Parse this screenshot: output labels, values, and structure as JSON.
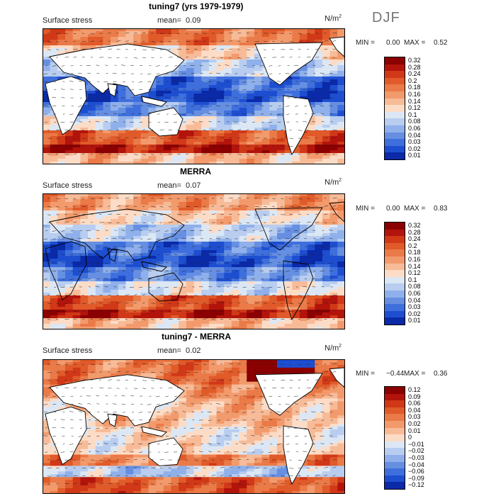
{
  "season": "DJF",
  "panels": [
    {
      "title": "tuning7 (yrs 1979-1979)",
      "variable": "Surface stress",
      "mean_label": "mean=",
      "mean_value": "0.09",
      "units": "N/m",
      "units_exp": "2",
      "min_label": "MIN =",
      "min_value": "0.00",
      "max_label": "MAX =",
      "max_value": "0.52",
      "colorbar": [
        "0.32",
        "0.28",
        "0.24",
        "0.2",
        "0.18",
        "0.16",
        "0.14",
        "0.12",
        "0.1",
        "0.08",
        "0.06",
        "0.04",
        "0.03",
        "0.02",
        "0.01"
      ],
      "colors": [
        "#8b0000",
        "#b2140c",
        "#d03818",
        "#e05a2a",
        "#ea7a48",
        "#f29a6c",
        "#f7bb98",
        "#fcdcc6",
        "#dce7f5",
        "#b8cdef",
        "#8fb0ea",
        "#668fe2",
        "#3f6fdc",
        "#1e4ed0",
        "#0a2aa8"
      ]
    },
    {
      "title": "MERRA",
      "variable": "Surface stress",
      "mean_label": "mean=",
      "mean_value": "0.07",
      "units": "N/m",
      "units_exp": "2",
      "min_label": "MIN =",
      "min_value": "0.00",
      "max_label": "MAX =",
      "max_value": "0.83",
      "colorbar": [
        "0.32",
        "0.28",
        "0.24",
        "0.2",
        "0.18",
        "0.16",
        "0.14",
        "0.12",
        "0.1",
        "0.08",
        "0.06",
        "0.04",
        "0.03",
        "0.02",
        "0.01"
      ],
      "colors": [
        "#8b0000",
        "#b2140c",
        "#d03818",
        "#e05a2a",
        "#ea7a48",
        "#f29a6c",
        "#f7bb98",
        "#fcdcc6",
        "#dce7f5",
        "#b8cdef",
        "#8fb0ea",
        "#668fe2",
        "#3f6fdc",
        "#1e4ed0",
        "#0a2aa8"
      ]
    },
    {
      "title": "tuning7 - MERRA",
      "variable": "Surface stress",
      "mean_label": "mean=",
      "mean_value": "0.02",
      "units": "N/m",
      "units_exp": "2",
      "min_label": "MIN =",
      "min_value": "−0.44",
      "max_label": "MAX =",
      "max_value": "0.36",
      "colorbar": [
        "0.12",
        "0.09",
        "0.06",
        "0.04",
        "0.03",
        "0.02",
        "0.01",
        "0",
        "−0.01",
        "−0.02",
        "−0.03",
        "−0.04",
        "−0.06",
        "−0.09",
        "−0.12"
      ],
      "colors": [
        "#8b0000",
        "#b2140c",
        "#d03818",
        "#e05a2a",
        "#ea7a48",
        "#f29a6c",
        "#f7bb98",
        "#fcdcc6",
        "#dce7f5",
        "#b8cdef",
        "#8fb0ea",
        "#668fe2",
        "#3f6fdc",
        "#1e4ed0",
        "#0a2aa8"
      ]
    }
  ],
  "chart_data": [
    {
      "type": "heatmap",
      "title": "tuning7 (yrs 1979-1979)",
      "variable": "Surface stress",
      "units": "N/m2",
      "season": "DJF",
      "mean": 0.09,
      "min": 0.0,
      "max": 0.52,
      "color_levels": [
        0.01,
        0.02,
        0.03,
        0.04,
        0.06,
        0.08,
        0.1,
        0.12,
        0.14,
        0.16,
        0.18,
        0.2,
        0.24,
        0.28,
        0.32
      ],
      "overlay": "wind stress vectors",
      "field": {
        "land_fill": "#ffffff"
      }
    },
    {
      "type": "heatmap",
      "title": "MERRA",
      "variable": "Surface stress",
      "units": "N/m2",
      "mean": 0.07,
      "min": 0.0,
      "max": 0.83,
      "color_levels": [
        0.01,
        0.02,
        0.03,
        0.04,
        0.06,
        0.08,
        0.1,
        0.12,
        0.14,
        0.16,
        0.18,
        0.2,
        0.24,
        0.28,
        0.32
      ],
      "overlay": "wind stress vectors",
      "field": {
        "land_fill": "field"
      }
    },
    {
      "type": "heatmap",
      "title": "tuning7 - MERRA",
      "variable": "Surface stress",
      "units": "N/m2",
      "mean": 0.02,
      "min": -0.44,
      "max": 0.36,
      "color_levels": [
        -0.12,
        -0.09,
        -0.06,
        -0.04,
        -0.03,
        -0.02,
        -0.01,
        0,
        0.01,
        0.02,
        0.03,
        0.04,
        0.06,
        0.09,
        0.12
      ],
      "overlay": "wind stress vector differences",
      "field": {
        "land_fill": "#ffffff"
      }
    }
  ]
}
